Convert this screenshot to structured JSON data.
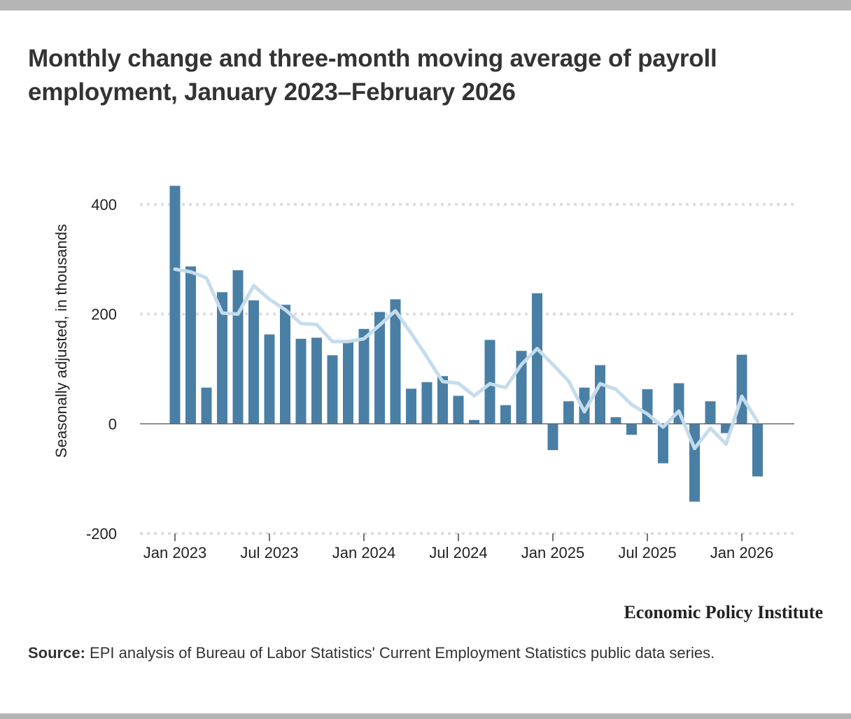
{
  "title": "Monthly change and three-month moving average of payroll employment, January 2023–February 2026",
  "brand": "Economic Policy Institute",
  "source": {
    "label": "Source:",
    "text": " EPI analysis of Bureau of Labor Statistics' Current Employment Statistics public data series."
  },
  "colors": {
    "bar": "#4a7fa5",
    "line": "#c4dcec",
    "grid": "#dddddd",
    "zero": "#666666"
  },
  "chart_data": {
    "type": "bar",
    "title": "Monthly change and three-month moving average of payroll employment, January 2023–February 2026",
    "xlabel": "",
    "ylabel": "Seasonally adjusted, in thousands",
    "ylim": [
      -200,
      400
    ],
    "yticks": [
      400,
      200,
      0,
      -200
    ],
    "ytick_labels": [
      "400",
      "200",
      "0",
      "-200"
    ],
    "xticks": [
      {
        "index": 0,
        "label": "Jan 2023"
      },
      {
        "index": 6,
        "label": "Jul 2023"
      },
      {
        "index": 12,
        "label": "Jan 2024"
      },
      {
        "index": 18,
        "label": "Jul 2024"
      },
      {
        "index": 24,
        "label": "Jan 2025"
      },
      {
        "index": 30,
        "label": "Jul 2025"
      },
      {
        "index": 36,
        "label": "Jan 2026"
      }
    ],
    "grid": true,
    "categories": [
      "Jan 2023",
      "Feb 2023",
      "Mar 2023",
      "Apr 2023",
      "May 2023",
      "Jun 2023",
      "Jul 2023",
      "Aug 2023",
      "Sep 2023",
      "Oct 2023",
      "Nov 2023",
      "Dec 2023",
      "Jan 2024",
      "Feb 2024",
      "Mar 2024",
      "Apr 2024",
      "May 2024",
      "Jun 2024",
      "Jul 2024",
      "Aug 2024",
      "Sep 2024",
      "Oct 2024",
      "Nov 2024",
      "Dec 2024",
      "Jan 2025",
      "Feb 2025",
      "Mar 2025",
      "Apr 2025",
      "May 2025",
      "Jun 2025",
      "Jul 2025",
      "Aug 2025",
      "Sep 2025",
      "Oct 2025",
      "Nov 2025",
      "Dec 2025",
      "Jan 2026",
      "Feb 2026"
    ],
    "series": [
      {
        "name": "Monthly change",
        "type": "bar",
        "values": [
          434,
          287,
          66,
          240,
          280,
          225,
          163,
          217,
          155,
          157,
          125,
          151,
          173,
          204,
          227,
          64,
          76,
          87,
          51,
          7,
          153,
          34,
          133,
          238,
          -48,
          41,
          66,
          107,
          12,
          -20,
          63,
          -72,
          74,
          -142,
          41,
          -17,
          126,
          -96
        ]
      },
      {
        "name": "Three-month moving average",
        "type": "line",
        "values": [
          282,
          277,
          266,
          202,
          200,
          252,
          227,
          208,
          183,
          181,
          150,
          150,
          155,
          180,
          206,
          165,
          122,
          77,
          74,
          51,
          73,
          66,
          108,
          137,
          108,
          78,
          22,
          73,
          63,
          35,
          18,
          -6,
          23,
          -45,
          -8,
          -37,
          50,
          4
        ]
      }
    ]
  }
}
